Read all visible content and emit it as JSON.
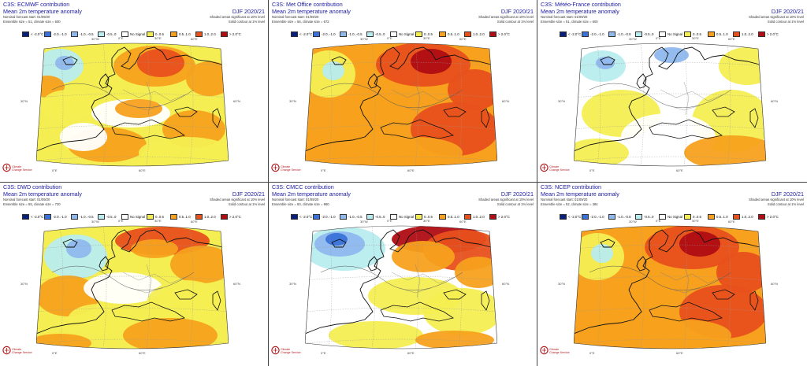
{
  "figure": {
    "shared": {
      "title_suffix": "contribution",
      "variable": "Mean 2m temperature anomaly",
      "season": "DJF 2020/21",
      "forecast_start": "Nominal forecast start: 01/09/20",
      "significance_shaded": "Shaded areas significant at 10% level",
      "significance_contour": "Solid contour at 1% level",
      "grid_labels": [
        "30°W",
        "0°E",
        "30°E",
        "60°E",
        "30°N",
        "60°N"
      ],
      "logo_line1": "Climate",
      "logo_line2": "Change Service"
    },
    "legend": [
      {
        "label": "< -2.0°C",
        "color": "#08207a"
      },
      {
        "label": "-2.0..-1.0",
        "color": "#3a72d8"
      },
      {
        "label": "-1.0..-0.5",
        "color": "#8fb8ee"
      },
      {
        "label": "-0.5..0",
        "color": "#b8ecee"
      },
      {
        "label": "No Signal",
        "color": "#ffffff"
      },
      {
        "label": "0..0.5",
        "color": "#f4ee52"
      },
      {
        "label": "0.5..1.0",
        "color": "#f7a11e"
      },
      {
        "label": "1.0..2.0",
        "color": "#e8501c"
      },
      {
        "label": "> 2.0°C",
        "color": "#b00d14"
      }
    ],
    "panels": [
      {
        "center": "ECMWF",
        "title": "C3S: ECMWF contribution",
        "ensemble": "Ensemble size = 51, climate size = 600",
        "dominant": "orange-mixed"
      },
      {
        "center": "Met Office",
        "title": "C3S: Met Office contribution",
        "ensemble": "Ensemble size = 56, climate size = 672",
        "dominant": "orange-red"
      },
      {
        "center": "Météo-France",
        "title": "C3S: Météo-France contribution",
        "ensemble": "Ensemble size = 51, climate size = 600",
        "dominant": "yellow-white"
      },
      {
        "center": "DWD",
        "title": "C3S: DWD contribution",
        "ensemble": "Ensemble size = 55, climate size = 720",
        "dominant": "yellow-mixed"
      },
      {
        "center": "CMCC",
        "title": "C3S: CMCC contribution",
        "ensemble": "Ensemble size = 50, climate size = 960",
        "dominant": "blue-west-red-east"
      },
      {
        "center": "NCEP",
        "title": "C3S: NCEP contribution",
        "ensemble": "Ensemble size = 52, climate size = 384",
        "dominant": "orange-red"
      }
    ]
  }
}
